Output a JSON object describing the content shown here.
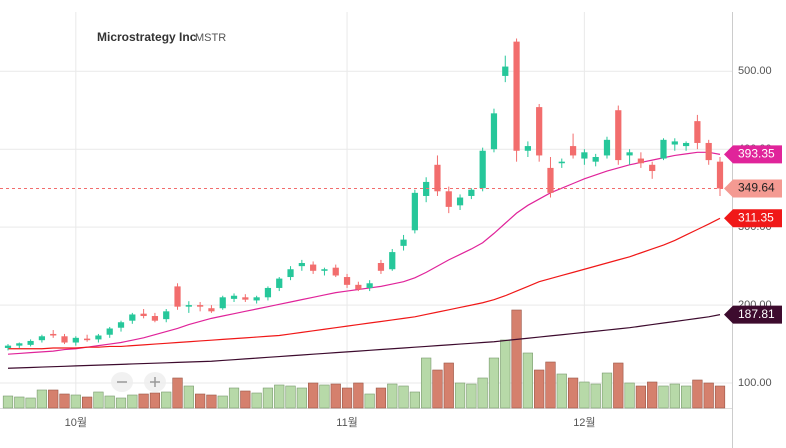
{
  "chart_data": {
    "type": "candlestick",
    "title": "Microstrategy Inc",
    "subtitle": "MSTR",
    "categories": [
      null,
      null,
      null,
      null,
      null,
      null,
      "10월",
      null,
      null,
      null,
      null,
      null,
      null,
      null,
      null,
      null,
      null,
      null,
      null,
      null,
      null,
      null,
      null,
      null,
      null,
      null,
      null,
      null,
      null,
      null,
      "11월",
      null,
      null,
      null,
      null,
      null,
      null,
      null,
      null,
      null,
      null,
      null,
      null,
      null,
      null,
      null,
      null,
      null,
      null,
      null,
      null,
      "12월",
      null,
      null,
      null,
      null,
      null,
      null,
      null,
      null,
      null,
      null,
      null,
      null
    ],
    "open": [
      145,
      148,
      149,
      155,
      163,
      160,
      152,
      157,
      156,
      162,
      171,
      180,
      189,
      186,
      182,
      224,
      198,
      200,
      196,
      196,
      208,
      210,
      206,
      210,
      222,
      236,
      250,
      252,
      244,
      248,
      236,
      226,
      222,
      254,
      246,
      276,
      296,
      340,
      380,
      346,
      328,
      340,
      350,
      400,
      494,
      538,
      398,
      454,
      376,
      382,
      404,
      388,
      384,
      392,
      450,
      392,
      388,
      380,
      388,
      406,
      404,
      436,
      408,
      384
    ],
    "high": [
      150,
      152,
      156,
      162,
      168,
      163,
      160,
      162,
      163,
      172,
      180,
      190,
      195,
      190,
      195,
      228,
      205,
      204,
      200,
      212,
      215,
      214,
      212,
      224,
      236,
      250,
      258,
      256,
      248,
      252,
      240,
      230,
      232,
      258,
      272,
      290,
      348,
      364,
      392,
      352,
      342,
      350,
      402,
      452,
      520,
      542,
      410,
      458,
      390,
      388,
      420,
      400,
      394,
      416,
      456,
      400,
      396,
      384,
      414,
      414,
      410,
      444,
      412,
      390
    ],
    "low": [
      142,
      145,
      147,
      152,
      158,
      150,
      148,
      153,
      152,
      158,
      166,
      176,
      183,
      178,
      178,
      194,
      190,
      192,
      190,
      194,
      204,
      204,
      202,
      206,
      218,
      232,
      244,
      240,
      238,
      236,
      222,
      218,
      218,
      240,
      244,
      270,
      292,
      332,
      340,
      318,
      322,
      336,
      346,
      396,
      486,
      384,
      390,
      384,
      338,
      376,
      388,
      380,
      378,
      388,
      380,
      380,
      376,
      362,
      386,
      398,
      398,
      400,
      380,
      340
    ],
    "close": [
      148,
      151,
      154,
      160,
      161,
      152,
      158,
      155,
      161,
      170,
      178,
      188,
      186,
      180,
      192,
      198,
      200,
      198,
      192,
      210,
      212,
      207,
      210,
      222,
      234,
      246,
      254,
      244,
      246,
      238,
      226,
      220,
      228,
      244,
      268,
      284,
      344,
      358,
      346,
      326,
      338,
      348,
      398,
      446,
      506,
      398,
      404,
      392,
      344,
      384,
      392,
      396,
      390,
      412,
      386,
      396,
      382,
      372,
      412,
      410,
      408,
      408,
      386,
      349.64
    ],
    "up_color": "#26c79a",
    "down_color": "#f26d6d",
    "close_flag_color": "#f49a92",
    "volume": {
      "values": [
        12,
        11,
        10,
        18,
        18,
        14,
        13,
        11,
        16,
        12,
        10,
        13,
        14,
        15,
        16,
        30,
        22,
        14,
        13,
        12,
        20,
        17,
        15,
        20,
        23,
        22,
        20,
        25,
        23,
        24,
        20,
        25,
        14,
        20,
        24,
        22,
        16,
        50,
        38,
        45,
        25,
        24,
        30,
        50,
        68,
        98,
        55,
        38,
        46,
        34,
        30,
        26,
        24,
        35,
        45,
        25,
        22,
        26,
        22,
        24,
        22,
        28,
        25,
        22
      ],
      "up_color": "#b7d9a8",
      "down_color": "#d5806d"
    },
    "vlim": [
      0,
      100
    ],
    "series": [
      {
        "color": "#e0249a",
        "values": [
          137,
          138,
          139,
          140,
          141,
          143,
          144,
          146,
          148,
          150,
          152,
          155,
          158,
          162,
          166,
          170,
          175,
          179,
          183,
          186,
          189,
          192,
          195,
          198,
          201,
          204,
          207,
          210,
          213,
          216,
          218,
          220,
          222,
          224,
          227,
          230,
          235,
          242,
          250,
          258,
          265,
          272,
          280,
          292,
          305,
          318,
          328,
          336,
          344,
          350,
          356,
          362,
          367,
          372,
          376,
          380,
          383,
          386,
          389,
          392,
          394,
          396,
          396,
          393.35
        ]
      },
      {
        "color": "#f01818",
        "values": [
          144,
          144,
          144,
          144,
          145,
          145,
          145,
          146,
          146,
          147,
          147,
          148,
          149,
          150,
          151,
          152,
          153,
          154,
          155,
          156,
          157,
          158,
          159,
          160,
          161,
          163,
          165,
          167,
          169,
          171,
          173,
          175,
          177,
          179,
          181,
          183,
          185,
          188,
          191,
          194,
          197,
          200,
          203,
          207,
          212,
          218,
          224,
          230,
          234,
          238,
          242,
          246,
          250,
          254,
          258,
          262,
          267,
          272,
          277,
          283,
          290,
          297,
          304,
          311.35
        ]
      },
      {
        "color": "#3d0b2e",
        "values": [
          119,
          119.5,
          120,
          120.5,
          121,
          121.5,
          122,
          122.5,
          123,
          123.5,
          124,
          124.5,
          125,
          125.5,
          126,
          126.5,
          127,
          127.5,
          128,
          129,
          130,
          131,
          132,
          133,
          134,
          135,
          136,
          137,
          138,
          139,
          140,
          141,
          142,
          143,
          144,
          145,
          146,
          147,
          148,
          149,
          150,
          151,
          152,
          153,
          154.5,
          156,
          157.5,
          159,
          160.5,
          162,
          163.5,
          165,
          166.5,
          168,
          169.5,
          171,
          173,
          175,
          177,
          179,
          181,
          183,
          185,
          187.81
        ]
      }
    ],
    "ylim": [
      68,
      576
    ],
    "yticks": [
      {
        "value": 100,
        "label": "100.00"
      },
      {
        "value": 200,
        "label": "200.00"
      },
      {
        "value": 300,
        "label": "300.00"
      },
      {
        "value": 400,
        "label": "400.00"
      },
      {
        "value": 500,
        "label": "500.00"
      }
    ],
    "grid": true
  }
}
